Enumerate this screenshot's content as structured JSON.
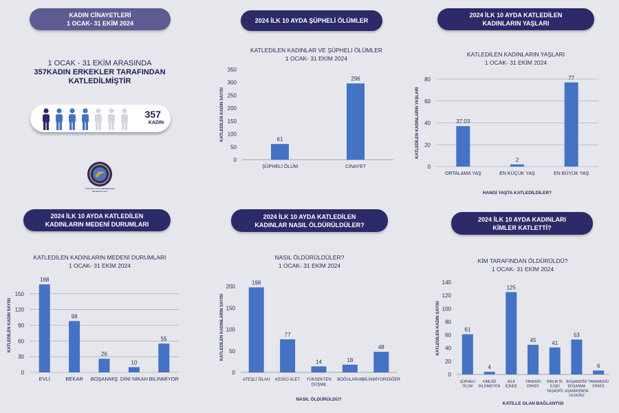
{
  "header_pills": {
    "p1": [
      "KADIN CİNAYETLERİ",
      "1 OCAK- 31 EKİM 2024"
    ],
    "p2": [
      "2024 İLK 10 AYDA ŞÜPHELİ ÖLÜMLER"
    ],
    "p3": [
      "2024 İLK 10 AYDA KATLEDİLEN",
      "KADINLARIN YAŞLARI"
    ],
    "p4": [
      "2024 İLK 10 AYDA KATLEDİLEN",
      "KADINLARIN MEDENİ DURUMLARI"
    ],
    "p5": [
      "2024 İLK 10 AYDA KATLEDİLEN",
      "KADINLAR NASIL ÖLDÜRÜLDÜLER?"
    ],
    "p6": [
      "2024 İLK 10 AYDA KADINLARI",
      "KİMLER KATLETTİ?"
    ]
  },
  "intro": {
    "line1": "1 OCAK - 31 EKİM ARASINDA",
    "line2": "357KADIN ERKEKLER TARAFINDAN",
    "line3": "KATLEDİLMİŞTİR"
  },
  "counter": {
    "number": "357",
    "unit": "KADIN"
  },
  "logo": {
    "text": "TÜRKİYE KADIN DERNEKLERİ FEDERASYONU"
  },
  "colors": {
    "bar": "#4472c4",
    "pill": "#2c2a68",
    "pill_light": "#5d5c92",
    "figure_dark": "#2c2a68",
    "figure_blue": "#4472c4",
    "figure_grey": "#d4d6de"
  },
  "chart_data": [
    {
      "id": "c1",
      "type": "bar",
      "title": [
        "KATLEDİLEN KADINLAR VE ŞÜPHELİ ÖLÜMLER",
        "1 OCAK- 31 EKİM 2024"
      ],
      "categories": [
        [
          "ŞÜPHELİ ÖLÜM"
        ],
        [
          "CİNAYET"
        ]
      ],
      "values": [
        61,
        296
      ],
      "ylabel": "KATLEDİLEN KADIN SAYISI",
      "xlabel": "",
      "ylim": [
        0,
        350
      ],
      "ticks": [
        0,
        50,
        100,
        150,
        200,
        250,
        300,
        350
      ]
    },
    {
      "id": "c2",
      "type": "bar",
      "title": [
        "KATLEDİLEN KADINLARIN YAŞLARI",
        "1 OCAK- 31 EKİM 2024"
      ],
      "categories": [
        [
          "ORTALAMA YAŞ"
        ],
        [
          "EN KÜÇÜK YAŞ"
        ],
        [
          "EN BÜYÜK YAŞ"
        ]
      ],
      "values": [
        37.03,
        2,
        77
      ],
      "labels": [
        "37.03",
        "2",
        "77"
      ],
      "ylabel": "KATLEDİLEN KADINLARIN YAŞLARI",
      "xlabel": "HANGİ YAŞTA KATLEDİLDİLER?",
      "ylim": [
        0,
        80
      ],
      "ticks": [
        0,
        20,
        40,
        60,
        80
      ]
    },
    {
      "id": "c3",
      "type": "bar",
      "title": [
        "KATLEDİLEN KADINLARIN MEDENİ DURUMLARI",
        "1 OCAK- 31 EKİM 2024"
      ],
      "categories": [
        [
          "EVLİ"
        ],
        [
          "BEKAR"
        ],
        [
          "BOŞANMIŞ"
        ],
        [
          "DİNİ NİKAH"
        ],
        [
          "BİLİNMİYOR"
        ]
      ],
      "values": [
        168,
        98,
        26,
        10,
        55
      ],
      "ylabel": "KATLEDİLEN KADIN SAYISI",
      "xlabel": "",
      "ylim": [
        0,
        180
      ],
      "ticks": [
        0,
        30,
        60,
        90,
        120,
        150
      ]
    },
    {
      "id": "c4",
      "type": "bar",
      "title": [
        "NASIL ÖLDÜRÜLDÜLER?",
        "1 OCAK- 31 EKİM 2024"
      ],
      "categories": [
        [
          "ATEŞLİ SİLAH"
        ],
        [
          "KESİCİ ALET"
        ],
        [
          "YÜKSEKTEN",
          "DÜŞME"
        ],
        [
          "BOĞULARAK"
        ],
        [
          "BİLİNMİYOR/DİĞER"
        ]
      ],
      "values": [
        198,
        77,
        14,
        18,
        48
      ],
      "ylabel": "KATLEDİLEN KADINLARIN SAYISI",
      "xlabel": "NASIL ÖLDÜRÜLDÜ?",
      "ylim": [
        0,
        210
      ],
      "ticks": [
        0,
        50,
        100,
        150,
        200
      ]
    },
    {
      "id": "c5",
      "type": "bar",
      "title": [
        "KİM TARAFINDAN ÖLDÜRÜLDÜ?",
        "1 OCAK- 31 EKİM 2024"
      ],
      "categories": [
        [
          "ŞÜPHELİ",
          "ÖLÜM"
        ],
        [
          "KİMLİĞİ",
          "BİLİNMEYEN"
        ],
        [
          "AİLE",
          "İÇİNDE"
        ],
        [
          "TANIDIĞI",
          "ERKEK"
        ],
        [
          "BİRLİKTE",
          "İLİŞKİ",
          "YAŞADIĞI"
        ],
        [
          "BOŞANDIĞI/",
          "BOŞANMA",
          "AŞAMASINDA",
          "OLDUĞU"
        ],
        [
          "TANIMADIĞI",
          "ERKEK"
        ]
      ],
      "values": [
        61,
        4,
        125,
        45,
        41,
        53,
        6
      ],
      "ylabel": "KATLEDİLEN KADIN SAYISI",
      "xlabel": "KATİLLE OLAN BAĞLANTISI",
      "ylim": [
        0,
        140
      ],
      "ticks": [
        0,
        20,
        40,
        60,
        80,
        100,
        120,
        140
      ]
    }
  ]
}
